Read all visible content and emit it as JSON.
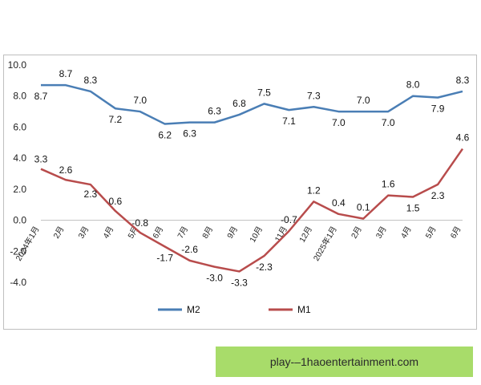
{
  "chart_data": {
    "type": "line",
    "categories": [
      "2024年1月",
      "2月",
      "3月",
      "4月",
      "5月",
      "6月",
      "7月",
      "8月",
      "9月",
      "10月",
      "11月",
      "12月",
      "2025年1月",
      "2月",
      "3月",
      "4月",
      "5月",
      "6月"
    ],
    "series": [
      {
        "name": "M2",
        "color": "#4a7eb5",
        "values": [
          8.7,
          8.7,
          8.3,
          7.2,
          7.0,
          6.2,
          6.3,
          6.3,
          6.8,
          7.5,
          7.1,
          7.3,
          7.0,
          7.0,
          7.0,
          8.0,
          7.9,
          8.3
        ]
      },
      {
        "name": "M1",
        "color": "#b84c4c",
        "values": [
          3.3,
          2.6,
          2.3,
          0.6,
          -0.8,
          -1.7,
          -2.6,
          -3.0,
          -3.3,
          -2.3,
          -0.7,
          1.2,
          0.4,
          0.1,
          1.6,
          1.5,
          2.3,
          4.6
        ]
      }
    ],
    "yticks": [
      "10.0",
      "8.0",
      "6.0",
      "4.0",
      "2.0",
      "0.0",
      "-2.0",
      "-4.0"
    ],
    "ylim": [
      -4,
      10
    ],
    "legend_position": "bottom",
    "grid": false
  },
  "watermark": "play-–1haoentertainment.com"
}
